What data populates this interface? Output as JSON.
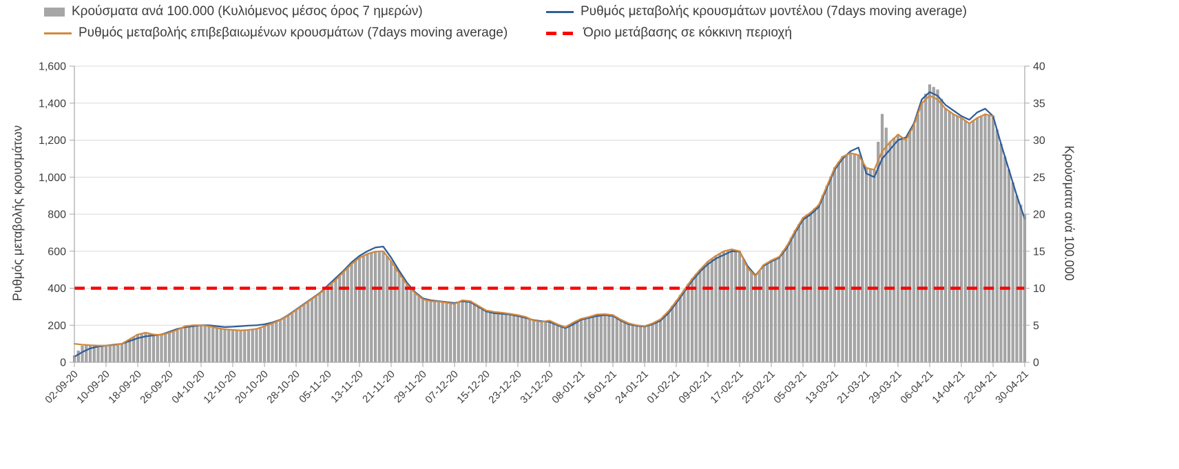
{
  "chart_data": {
    "type": "combo",
    "title": "",
    "x_tick_labels": [
      "02-09-20",
      "10-09-20",
      "18-09-20",
      "26-09-20",
      "04-10-20",
      "12-10-20",
      "20-10-20",
      "28-10-20",
      "05-11-20",
      "13-11-20",
      "21-11-20",
      "29-11-20",
      "07-12-20",
      "15-12-20",
      "23-12-20",
      "31-12-20",
      "08-01-21",
      "16-01-21",
      "24-01-21",
      "01-02-21",
      "09-02-21",
      "17-02-21",
      "25-02-21",
      "05-03-21",
      "13-03-21",
      "21-03-21",
      "29-03-21",
      "06-04-21",
      "14-04-21",
      "22-04-21",
      "30-04-21"
    ],
    "x_tick_interval_days": 8,
    "total_days": 240,
    "left_axis": {
      "label": "Ρυθμός μεταβολής κρουσμάτων",
      "min": 0,
      "max": 1600,
      "step": 200,
      "tick_labels": [
        "0",
        "200",
        "400",
        "600",
        "800",
        "1,000",
        "1,200",
        "1,400",
        "1,600"
      ]
    },
    "right_axis": {
      "label": "Κρούσματα ανά 100.000",
      "min": 0,
      "max": 40,
      "step": 5,
      "tick_labels": [
        "0",
        "5",
        "10",
        "15",
        "20",
        "25",
        "30",
        "35",
        "40"
      ]
    },
    "threshold": {
      "label": "Όριο μετάβασης σε κόκκινη περιοχή",
      "value_left_axis": 400,
      "color": "#fe0000"
    },
    "series": [
      {
        "name": "Κρούσματα ανά 100.000 (Κυλιόμενος μέσος όρος 7 ημερών)",
        "type": "bar",
        "axis": "right",
        "color": "#a6a6a6",
        "day_step": 2,
        "values": [
          0.9,
          2.2,
          2.3,
          2.2,
          2.3,
          2.3,
          2.5,
          3.1,
          3.8,
          4.0,
          3.8,
          3.7,
          4.0,
          4.4,
          4.9,
          5.0,
          5.0,
          4.9,
          4.6,
          4.5,
          4.4,
          4.3,
          4.4,
          4.5,
          4.9,
          5.3,
          5.7,
          6.3,
          7.1,
          7.8,
          8.6,
          9.3,
          10.2,
          11.1,
          12.2,
          13.3,
          14.1,
          14.6,
          15.0,
          15.0,
          13.6,
          12.0,
          10.5,
          9.4,
          8.5,
          8.3,
          8.2,
          8.1,
          7.9,
          8.4,
          8.3,
          7.6,
          7.0,
          6.8,
          6.7,
          6.6,
          6.4,
          6.1,
          5.6,
          5.5,
          5.6,
          5.1,
          4.8,
          5.4,
          5.9,
          6.1,
          6.5,
          6.5,
          6.4,
          5.8,
          5.3,
          5.0,
          4.9,
          5.3,
          5.8,
          6.9,
          8.3,
          9.8,
          11.3,
          12.5,
          13.6,
          14.4,
          15.0,
          15.3,
          15.0,
          12.8,
          11.6,
          13.1,
          13.8,
          14.3,
          15.8,
          17.8,
          19.5,
          20.3,
          21.3,
          23.8,
          26.3,
          27.8,
          28.3,
          28.0,
          26.3,
          26.0,
          33.5,
          29.8,
          30.8,
          30.0,
          32.0,
          35.0,
          37.5,
          36.8,
          34.3,
          33.5,
          33.0,
          32.3,
          33.0,
          33.5,
          33.3,
          29.5,
          26.0,
          22.5,
          20.0
        ]
      },
      {
        "name": "Ρυθμός μεταβολής κρουσμάτων μοντέλου (7days moving average)",
        "type": "line",
        "axis": "left",
        "color": "#2f5d99",
        "day_step": 2,
        "values": [
          30,
          55,
          75,
          85,
          90,
          95,
          100,
          115,
          130,
          140,
          145,
          150,
          165,
          180,
          190,
          195,
          200,
          200,
          195,
          190,
          192,
          195,
          198,
          200,
          205,
          215,
          230,
          255,
          285,
          315,
          345,
          375,
          415,
          455,
          495,
          540,
          575,
          600,
          620,
          625,
          565,
          495,
          430,
          380,
          345,
          335,
          330,
          325,
          320,
          330,
          325,
          300,
          275,
          265,
          262,
          258,
          250,
          240,
          228,
          222,
          218,
          200,
          185,
          205,
          230,
          240,
          250,
          255,
          250,
          225,
          205,
          197,
          193,
          205,
          225,
          265,
          320,
          380,
          440,
          490,
          530,
          560,
          580,
          600,
          598,
          520,
          470,
          520,
          545,
          565,
          620,
          700,
          770,
          800,
          840,
          940,
          1040,
          1100,
          1140,
          1160,
          1020,
          1000,
          1100,
          1150,
          1200,
          1215,
          1290,
          1420,
          1460,
          1440,
          1390,
          1360,
          1330,
          1310,
          1350,
          1370,
          1330,
          1180,
          1040,
          900,
          775
        ]
      },
      {
        "name": "Ρυθμός μεταβολής επιβεβαιωμένων κρουσμάτων (7days moving average)",
        "type": "line",
        "axis": "left",
        "color": "#d2883c",
        "day_step": 2,
        "values": [
          100,
          95,
          92,
          90,
          90,
          92,
          100,
          125,
          150,
          160,
          150,
          148,
          160,
          175,
          195,
          200,
          200,
          195,
          185,
          178,
          175,
          172,
          175,
          180,
          195,
          210,
          228,
          252,
          282,
          312,
          342,
          372,
          408,
          445,
          488,
          530,
          565,
          585,
          598,
          600,
          545,
          480,
          420,
          375,
          340,
          330,
          328,
          322,
          315,
          335,
          330,
          305,
          280,
          272,
          268,
          262,
          255,
          245,
          225,
          218,
          225,
          205,
          190,
          215,
          235,
          245,
          258,
          260,
          255,
          230,
          210,
          200,
          195,
          210,
          232,
          275,
          330,
          390,
          450,
          500,
          545,
          575,
          600,
          610,
          600,
          510,
          465,
          525,
          550,
          570,
          630,
          710,
          780,
          810,
          850,
          950,
          1050,
          1110,
          1130,
          1120,
          1050,
          1040,
          1140,
          1190,
          1230,
          1200,
          1280,
          1400,
          1440,
          1420,
          1370,
          1340,
          1320,
          1290,
          1320,
          1340,
          1330,
          null,
          null,
          null,
          null
        ]
      }
    ],
    "legend_position": "top",
    "grid": "horizontal"
  }
}
